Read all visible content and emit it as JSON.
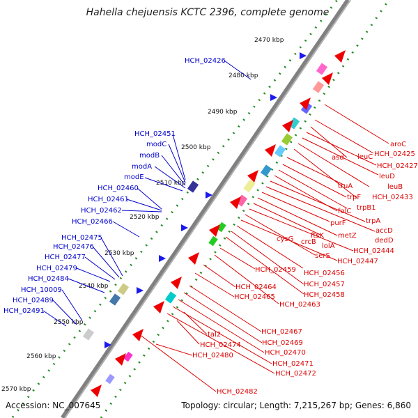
{
  "title": "Hahella chejuensis KCTC 2396, complete genome",
  "accession": "Accession: NC_007645",
  "topology": "Topology: circular; Length: 7,215,267 bp; Genes: 6,860",
  "kbp_ticks": [
    "2470 kbp",
    "2480 kbp",
    "2490 kbp",
    "2500 kbp",
    "2510 kbp",
    "2520 kbp",
    "2530 kbp",
    "2540 kbp",
    "2550 kbp",
    "2560 kbp",
    "2570 kbp"
  ],
  "left_labels": [
    "HCH_02426",
    "HCH_02451",
    "modC",
    "modB",
    "modA",
    "modE",
    "HCH_02460",
    "HCH_02461",
    "HCH_02462",
    "HCH_02466",
    "HCH_02475",
    "HCH_02476",
    "HCH_02477",
    "HCH_02479",
    "HCH_02484",
    "HCH_10009",
    "HCH_02489",
    "HCH_02491"
  ],
  "right_labels": [
    "aroC",
    "HCH_02425",
    "asd",
    "leuC",
    "HCH_02427",
    "leuD",
    "truA",
    "leuB",
    "trpF",
    "HCH_02433",
    "trpB1",
    "folC",
    "trpA",
    "purF",
    "accD",
    "cysG",
    "ftsK",
    "crcB",
    "dedD",
    "metZ",
    "lolA",
    "HCH_02444",
    "serS",
    "HCH_02447",
    "HCH_02459",
    "HCH_02456",
    "HCH_02457",
    "HCH_02464",
    "HCH_02458",
    "HCH_02465",
    "HCH_02463",
    "HCH_02467",
    "tal2",
    "HCH_02469",
    "HCH_02474",
    "HCH_02470",
    "HCH_02480",
    "HCH_02471",
    "HCH_02472",
    "HCH_02482"
  ],
  "colors": {
    "backbone": "#808080",
    "gene_arrow": "#ee0000",
    "left_label": "#0000cc",
    "right_label": "#dd0000",
    "gc_dots": "#228b22",
    "small_feature": "#1a1aee"
  }
}
